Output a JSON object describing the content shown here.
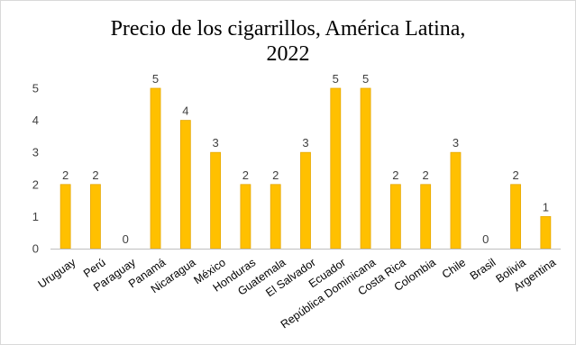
{
  "chart_data": {
    "type": "bar",
    "title_line1": "Precio de los cigarrillos, América Latina,",
    "title_line2": "2022",
    "xlabel": "",
    "ylabel": "",
    "ylim": [
      0,
      5
    ],
    "yticks": [
      0,
      1,
      2,
      3,
      4,
      5
    ],
    "grid": false,
    "legend": "none",
    "bar_color": "#FFC000",
    "bar_edge_color": "#E6A800",
    "categories": [
      "Uruguay",
      "Perú",
      "Paraguay",
      "Panamá",
      "Nicaragua",
      "México",
      "Honduras",
      "Guatemala",
      "El Salvador",
      "Ecuador",
      "República Dominicana",
      "Costa Rica",
      "Colombia",
      "Chile",
      "Brasil",
      "Bolivia",
      "Argentina"
    ],
    "values": [
      2,
      2,
      0,
      5,
      4,
      3,
      2,
      2,
      3,
      5,
      5,
      2,
      2,
      3,
      0,
      2,
      1
    ]
  }
}
